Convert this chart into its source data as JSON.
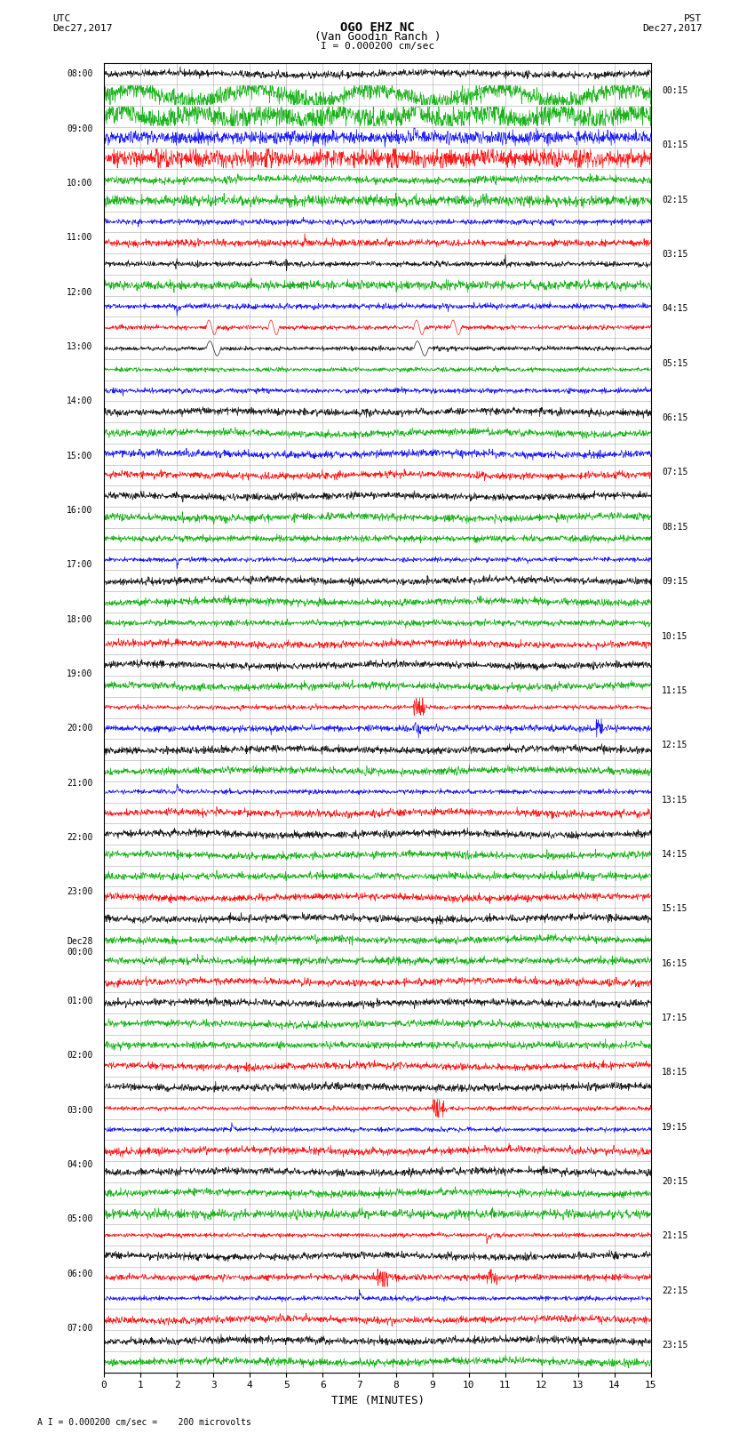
{
  "title_line1": "OGO EHZ NC",
  "title_line2": "(Van Goodin Ranch )",
  "title_line3": "I = 0.000200 cm/sec",
  "left_label_top": "UTC",
  "left_date_top": "Dec27,2017",
  "right_label_top": "PST",
  "right_date_top": "Dec27,2017",
  "xlabel": "TIME (MINUTES)",
  "bottom_note": "A I = 0.000200 cm/sec =    200 microvolts",
  "xlim": [
    0,
    15
  ],
  "bg_color": "#ffffff",
  "grid_color": "#aaaaaa",
  "trace_colors_cycle": [
    "#000000",
    "#00aa00",
    "#0000ff",
    "#ff0000"
  ],
  "noise_amplitude": 0.08,
  "fig_width": 8.5,
  "fig_height": 16.13,
  "dpi": 100
}
